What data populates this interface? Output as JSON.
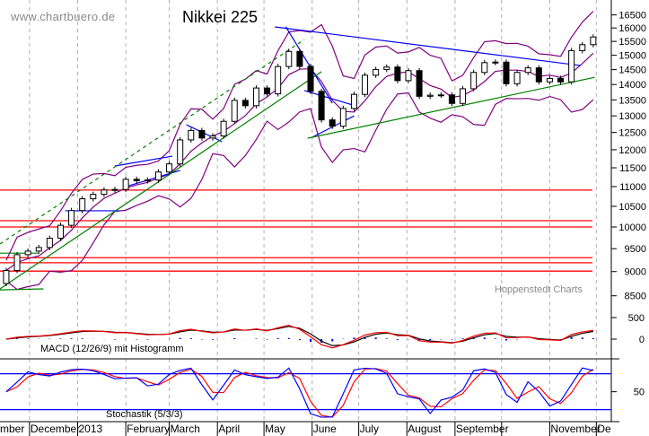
{
  "chart_data": {
    "type": "candlestick",
    "title": "Nikkei 225",
    "watermark": "www.chartbuero.de",
    "source": "Hoppenstedt Charts",
    "y_scale": "log",
    "ylim": [
      8500,
      16800
    ],
    "grid": "vertical dashed at month starts",
    "price_axis_labels": [
      "16500",
      "16000",
      "15500",
      "15000",
      "14500",
      "14000",
      "13500",
      "13000",
      "12500",
      "12000",
      "11500",
      "11000",
      "10500",
      "10000",
      "9500",
      "9000",
      "8500"
    ],
    "x_axis_labels": [
      {
        "label": "mber",
        "date": "2012-11-12"
      },
      {
        "label": "December",
        "date": "2012-12-01"
      },
      {
        "label": "2013",
        "date": "2013-01-01"
      },
      {
        "label": "February",
        "date": "2013-02-01"
      },
      {
        "label": "March",
        "date": "2013-03-01"
      },
      {
        "label": "April",
        "date": "2013-04-01"
      },
      {
        "label": "May",
        "date": "2013-05-01"
      },
      {
        "label": "June",
        "date": "2013-06-01"
      },
      {
        "label": "July",
        "date": "2013-07-01"
      },
      {
        "label": "August",
        "date": "2013-08-01"
      },
      {
        "label": "September",
        "date": "2013-09-01"
      },
      {
        "label": "",
        "date": "2013-10-01"
      },
      {
        "label": "November",
        "date": "2013-11-01"
      },
      {
        "label": "De",
        "date": "2013-12-01"
      }
    ],
    "closes": [
      [
        "2012-11-16",
        9024
      ],
      [
        "2012-11-23",
        9366
      ],
      [
        "2012-11-30",
        9446
      ],
      [
        "2012-12-07",
        9527
      ],
      [
        "2012-12-14",
        9737
      ],
      [
        "2012-12-21",
        10040
      ],
      [
        "2012-12-28",
        10395
      ],
      [
        "2013-01-04",
        10688
      ],
      [
        "2013-01-11",
        10801
      ],
      [
        "2013-01-18",
        10913
      ],
      [
        "2013-01-25",
        10926
      ],
      [
        "2013-02-01",
        11191
      ],
      [
        "2013-02-08",
        11153
      ],
      [
        "2013-02-15",
        11173
      ],
      [
        "2013-02-22",
        11386
      ],
      [
        "2013-03-01",
        11606
      ],
      [
        "2013-03-08",
        12283
      ],
      [
        "2013-03-15",
        12560
      ],
      [
        "2013-03-22",
        12338
      ],
      [
        "2013-03-29",
        12398
      ],
      [
        "2013-04-05",
        12834
      ],
      [
        "2013-04-12",
        13485
      ],
      [
        "2013-04-19",
        13316
      ],
      [
        "2013-04-26",
        13884
      ],
      [
        "2013-05-03",
        13694
      ],
      [
        "2013-05-10",
        14607
      ],
      [
        "2013-05-17",
        15138
      ],
      [
        "2013-05-24",
        14612
      ],
      [
        "2013-05-31",
        13774
      ],
      [
        "2013-06-07",
        12877
      ],
      [
        "2013-06-14",
        12686
      ],
      [
        "2013-06-21",
        13230
      ],
      [
        "2013-06-28",
        13677
      ],
      [
        "2013-07-05",
        14309
      ],
      [
        "2013-07-12",
        14506
      ],
      [
        "2013-07-19",
        14589
      ],
      [
        "2013-07-26",
        14129
      ],
      [
        "2013-08-02",
        14466
      ],
      [
        "2013-08-09",
        13615
      ],
      [
        "2013-08-16",
        13650
      ],
      [
        "2013-08-23",
        13660
      ],
      [
        "2013-08-30",
        13389
      ],
      [
        "2013-09-06",
        13860
      ],
      [
        "2013-09-13",
        14404
      ],
      [
        "2013-09-20",
        14742
      ],
      [
        "2013-09-27",
        14760
      ],
      [
        "2013-10-04",
        14024
      ],
      [
        "2013-10-11",
        14405
      ],
      [
        "2013-10-18",
        14561
      ],
      [
        "2013-10-25",
        14088
      ],
      [
        "2013-11-01",
        14202
      ],
      [
        "2013-11-08",
        14086
      ],
      [
        "2013-11-15",
        15166
      ],
      [
        "2013-11-22",
        15382
      ],
      [
        "2013-11-29",
        15662
      ]
    ],
    "horizontal_levels": [
      10910,
      10150,
      10000,
      9300,
      9190,
      9010
    ],
    "trendlines": [
      {
        "color": "#0000ff",
        "dash": false,
        "from": [
          "2013-05-08",
          16040
        ],
        "to": [
          "2013-11-21",
          14640
        ]
      },
      {
        "color": "#0000ff",
        "dash": false,
        "from": [
          "2013-05-15",
          16050
        ],
        "to": [
          "2013-06-14",
          13395
        ]
      },
      {
        "color": "#0000ff",
        "dash": false,
        "from": [
          "2013-05-27",
          13800
        ],
        "to": [
          "2013-06-27",
          13340
        ]
      },
      {
        "color": "#0000ff",
        "dash": false,
        "from": [
          "2013-06-01",
          12360
        ],
        "to": [
          "2013-06-28",
          13000
        ]
      },
      {
        "color": "#0000ff",
        "dash": false,
        "from": [
          "2013-01-25",
          11550
        ],
        "to": [
          "2013-03-03",
          11820
        ]
      },
      {
        "color": "#0000ff",
        "dash": false,
        "from": [
          "2013-02-01",
          11000
        ],
        "to": [
          "2013-03-08",
          11430
        ]
      },
      {
        "color": "#0000ff",
        "dash": false,
        "from": [
          "2012-12-24",
          10390
        ],
        "to": [
          "2013-01-28",
          10390
        ]
      },
      {
        "color": "#0000ff",
        "dash": false,
        "from": [
          "2013-03-12",
          12730
        ],
        "to": [
          "2013-04-04",
          12230
        ]
      },
      {
        "color": "#008000",
        "dash": false,
        "from": [
          "2013-05-29",
          12330
        ],
        "to": [
          "2013-11-30",
          14240
        ]
      },
      {
        "color": "#008000",
        "dash": false,
        "from": [
          "2012-11-12",
          8640
        ],
        "to": [
          "2013-06-07",
          14430
        ]
      },
      {
        "color": "#008000",
        "dash": true,
        "from": [
          "2012-11-12",
          9605
        ],
        "to": [
          "2013-05-27",
          15570
        ]
      },
      {
        "color": "#008000",
        "dash": false,
        "from": [
          "2012-11-12",
          9400
        ],
        "to": [
          "2012-12-07",
          9400
        ]
      },
      {
        "color": "#008000",
        "dash": false,
        "from": [
          "2012-11-12",
          8620
        ],
        "to": [
          "2012-12-10",
          8640
        ]
      }
    ],
    "macd": {
      "legend": "MACD (12/26/9) mit Histogramm",
      "axis_labels": [
        "500",
        "0"
      ]
    },
    "stochastic": {
      "legend": "Stochastik (5/3/3)",
      "axis_labels": [
        "50"
      ],
      "levels": [
        80,
        20
      ]
    },
    "colors": {
      "bollinger": "#800080",
      "levels": "#ff0000",
      "macd": "#ff0000",
      "signal": "#000000",
      "histogram": "#0000ff",
      "stoch_k": "#0000ff",
      "stoch_d": "#ff0000"
    }
  }
}
